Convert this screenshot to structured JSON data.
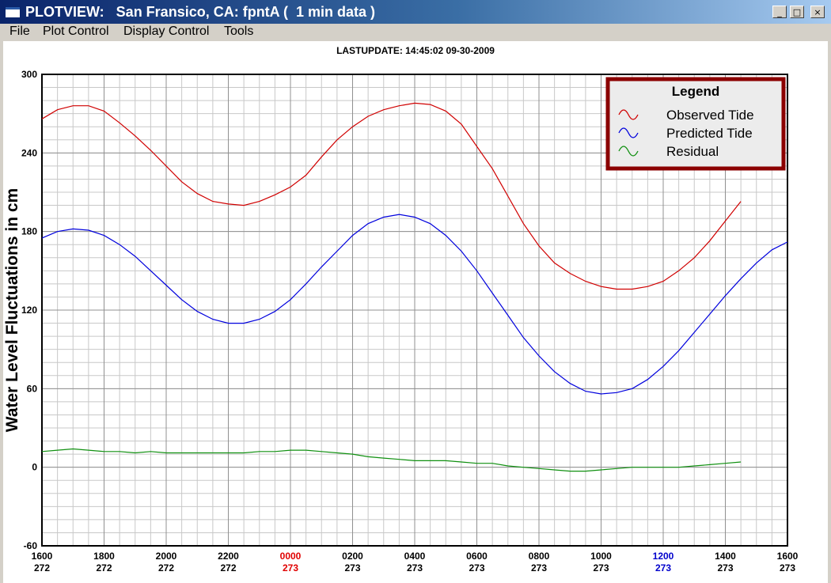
{
  "window": {
    "title": "PLOTVIEW:   San Fransico, CA: fpntA (  1 min data )",
    "buttons": {
      "minimize": "_",
      "maximize": "□",
      "close": "×"
    }
  },
  "menu": {
    "items": [
      "File",
      "Plot Control",
      "Display Control",
      "Tools"
    ]
  },
  "header": {
    "lastupdate": "LASTUPDATE: 14:45:02  09-30-2009"
  },
  "chart_data": {
    "type": "line",
    "ylabel": "Water Level Fluctuations in cm",
    "ylim": [
      -60,
      300
    ],
    "yticks": [
      -60,
      0,
      60,
      120,
      180,
      240,
      300
    ],
    "xlim_hours": [
      0,
      24
    ],
    "xticks": [
      {
        "time": "1600",
        "day": "272"
      },
      {
        "time": "1800",
        "day": "272"
      },
      {
        "time": "2000",
        "day": "272"
      },
      {
        "time": "2200",
        "day": "272"
      },
      {
        "time": "0000",
        "day": "273",
        "color": "#e00000"
      },
      {
        "time": "0200",
        "day": "273"
      },
      {
        "time": "0400",
        "day": "273"
      },
      {
        "time": "0600",
        "day": "273"
      },
      {
        "time": "0800",
        "day": "273"
      },
      {
        "time": "1000",
        "day": "273"
      },
      {
        "time": "1200",
        "day": "273",
        "color": "#0000cc"
      },
      {
        "time": "1400",
        "day": "273"
      },
      {
        "time": "1600",
        "day": "273"
      }
    ],
    "grid": true,
    "legend": {
      "title": "Legend",
      "placement": "top-right"
    },
    "series": [
      {
        "name": "Observed Tide",
        "color": "#d00000",
        "x": [
          0,
          0.5,
          1,
          1.5,
          2,
          2.5,
          3,
          3.5,
          4,
          4.5,
          5,
          5.5,
          6,
          6.5,
          7,
          7.5,
          8,
          8.5,
          9,
          9.5,
          10,
          10.5,
          11,
          11.5,
          12,
          12.5,
          13,
          13.5,
          14,
          14.5,
          15,
          15.5,
          16,
          16.5,
          17,
          17.5,
          18,
          18.5,
          19,
          19.5,
          20,
          20.5,
          21,
          21.5,
          22,
          22.5
        ],
        "values": [
          266,
          273,
          276,
          276,
          272,
          263,
          253,
          242,
          230,
          218,
          209,
          203,
          201,
          200,
          203,
          208,
          214,
          223,
          237,
          250,
          260,
          268,
          273,
          276,
          278,
          277,
          272,
          262,
          245,
          228,
          207,
          186,
          169,
          156,
          148,
          142,
          138,
          136,
          136,
          138,
          142,
          150,
          160,
          173,
          188,
          203
        ]
      },
      {
        "name": "Predicted Tide",
        "color": "#0000dd",
        "x": [
          0,
          0.5,
          1,
          1.5,
          2,
          2.5,
          3,
          3.5,
          4,
          4.5,
          5,
          5.5,
          6,
          6.5,
          7,
          7.5,
          8,
          8.5,
          9,
          9.5,
          10,
          10.5,
          11,
          11.5,
          12,
          12.5,
          13,
          13.5,
          14,
          14.5,
          15,
          15.5,
          16,
          16.5,
          17,
          17.5,
          18,
          18.5,
          19,
          19.5,
          20,
          20.5,
          21,
          21.5,
          22,
          22.5,
          23,
          23.5,
          24
        ],
        "values": [
          175,
          180,
          182,
          181,
          177,
          170,
          161,
          150,
          139,
          128,
          119,
          113,
          110,
          110,
          113,
          119,
          128,
          140,
          153,
          165,
          177,
          186,
          191,
          193,
          191,
          186,
          177,
          165,
          150,
          133,
          116,
          99,
          85,
          73,
          64,
          58,
          56,
          57,
          60,
          67,
          77,
          89,
          103,
          117,
          131,
          144,
          156,
          166,
          172
        ]
      },
      {
        "name": "Residual",
        "color": "#109010",
        "x": [
          0,
          0.5,
          1,
          1.5,
          2,
          2.5,
          3,
          3.5,
          4,
          4.5,
          5,
          5.5,
          6,
          6.5,
          7,
          7.5,
          8,
          8.5,
          9,
          9.5,
          10,
          10.5,
          11,
          11.5,
          12,
          12.5,
          13,
          13.5,
          14,
          14.5,
          15,
          15.5,
          16,
          16.5,
          17,
          17.5,
          18,
          18.5,
          19,
          19.5,
          20,
          20.5,
          21,
          21.5,
          22,
          22.5
        ],
        "values": [
          12,
          13,
          14,
          13,
          12,
          12,
          11,
          12,
          11,
          11,
          11,
          11,
          11,
          11,
          12,
          12,
          13,
          13,
          12,
          11,
          10,
          8,
          7,
          6,
          5,
          5,
          5,
          4,
          3,
          3,
          1,
          0,
          -1,
          -2,
          -3,
          -3,
          -2,
          -1,
          0,
          0,
          0,
          0,
          1,
          2,
          3,
          4
        ]
      }
    ]
  }
}
